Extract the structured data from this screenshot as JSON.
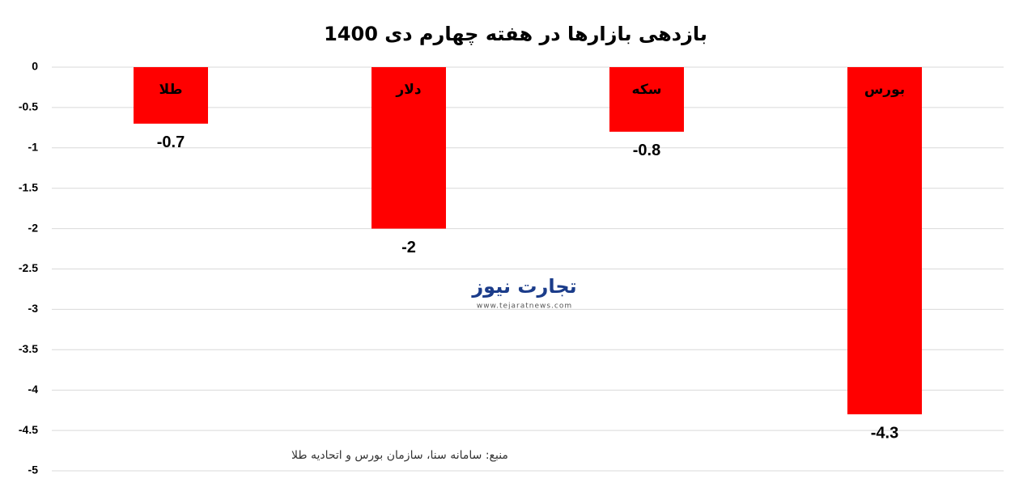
{
  "chart_data": {
    "type": "bar",
    "title": "بازدهی بازارها در هفته چهارم دی 1400",
    "categories": [
      "طلا",
      "دلار",
      "سکه",
      "بورس"
    ],
    "values": [
      -0.7,
      -2,
      -0.8,
      -4.3
    ],
    "color": "#ff0000",
    "ylim": [
      -5,
      0
    ],
    "yticks": [
      0,
      -0.5,
      -1,
      -1.5,
      -2,
      -2.5,
      -3,
      -3.5,
      -4,
      -4.5,
      -5
    ],
    "grid": true,
    "source": "منبع: سامانه سنا، سازمان بورس و اتحادیه طلا",
    "watermark": {
      "name": "تجارت نیوز",
      "url": "www.tejaratnews.com"
    }
  }
}
